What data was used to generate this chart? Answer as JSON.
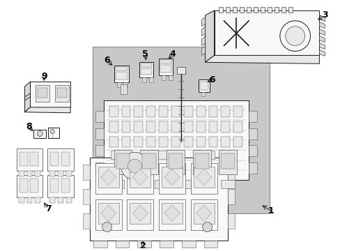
{
  "background_color": "#ffffff",
  "panel_color": "#d0d0d0",
  "line_color": "#1a1a1a",
  "part_fill": "#f8f8f8",
  "part_fill2": "#e8e8e8",
  "part_fill3": "#d8d8d8",
  "fig_width": 4.89,
  "fig_height": 3.6,
  "dpi": 100,
  "label_fs": 9,
  "lw_main": 0.7,
  "lw_thin": 0.4
}
